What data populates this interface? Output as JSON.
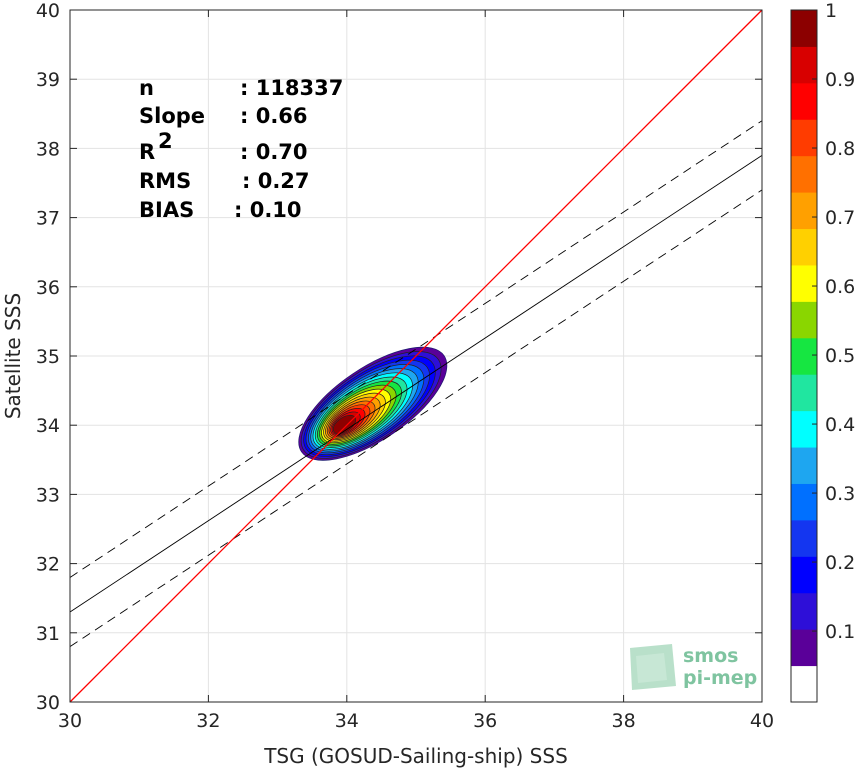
{
  "chart_data": {
    "type": "scatter",
    "subtype": "density-contour",
    "xlabel": "TSG (GOSUD-Sailing-ship) SSS",
    "ylabel": "Satellite SSS",
    "xlim": [
      30,
      40
    ],
    "ylim": [
      30,
      40
    ],
    "xticks": [
      "30",
      "32",
      "34",
      "36",
      "38",
      "40"
    ],
    "yticks": [
      "30",
      "31",
      "32",
      "33",
      "34",
      "35",
      "36",
      "37",
      "38",
      "39",
      "40"
    ],
    "grid": true,
    "stats": [
      {
        "label": "n",
        "value": ": 118337"
      },
      {
        "label": "Slope",
        "value": ": 0.66"
      },
      {
        "label": "R",
        "sup": "2",
        "value": ": 0.70"
      },
      {
        "label": "RMS",
        "value": ": 0.27"
      },
      {
        "label": "BIAS",
        "value": ": 0.10"
      }
    ],
    "reference_line": {
      "description": "1:1 line",
      "color": "#ff0000",
      "points": [
        [
          30,
          30
        ],
        [
          40,
          40
        ]
      ]
    },
    "fit_line": {
      "slope": 0.66,
      "intercept": 11.5,
      "color": "#000000"
    },
    "fit_offset_lines": [
      -0.5,
      0.5
    ],
    "density_contours": {
      "center": [
        34.0,
        34.05
      ],
      "levels": [
        0.05,
        0.1,
        0.15,
        0.2,
        0.25,
        0.3,
        0.35,
        0.4,
        0.45,
        0.5,
        0.55,
        0.6,
        0.65,
        0.7,
        0.75,
        0.8,
        0.85,
        0.9
      ]
    },
    "colorbar": {
      "ticks": [
        "0.1",
        "0.2",
        "0.3",
        "0.4",
        "0.5",
        "0.6",
        "0.7",
        "0.8",
        "0.9",
        "1"
      ],
      "colors": [
        "#ffffff",
        "#5a0099",
        "#2e0fd8",
        "#0000ff",
        "#1436f0",
        "#0070ff",
        "#1ea6f0",
        "#00ffff",
        "#20e6a0",
        "#16e641",
        "#8ad600",
        "#ffff00",
        "#ffd000",
        "#ffa000",
        "#ff7000",
        "#ff3c00",
        "#ff0000",
        "#d80000",
        "#8c0000"
      ]
    },
    "logo": {
      "line1": "smos",
      "line2": "pi-mep"
    }
  }
}
